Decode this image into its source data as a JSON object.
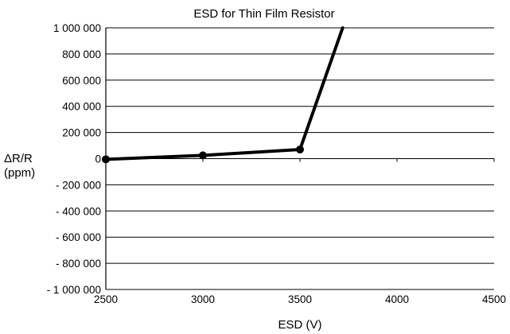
{
  "chart_data": {
    "type": "line",
    "title": "ESD for Thin Film Resistor",
    "xlabel": "ESD (V)",
    "ylabel_line1": "ΔR/R",
    "ylabel_line2": "(ppm)",
    "xlim": [
      2500,
      4500
    ],
    "ylim": [
      -1000000,
      1000000
    ],
    "x_ticks": [
      2500,
      3000,
      3500,
      4000,
      4500
    ],
    "y_ticks": [
      1000000,
      800000,
      600000,
      400000,
      200000,
      0,
      -200000,
      -400000,
      -600000,
      -800000,
      -1000000
    ],
    "x_tick_labels": [
      "2500",
      "3000",
      "3500",
      "4000",
      "4500"
    ],
    "y_tick_labels": [
      "1 000 000",
      "800 000",
      "600 000",
      "400 000",
      "200 000",
      "0",
      "- 200 000",
      "- 400 000",
      "- 600 000",
      "- 800 000",
      "- 1 000 000"
    ],
    "grid": "horizontal",
    "series": [
      {
        "x": [
          2500,
          3000,
          3500,
          3720
        ],
        "y": [
          -5000,
          25000,
          70000,
          1000000
        ],
        "markers": [
          true,
          true,
          true,
          false
        ],
        "color": "#000000"
      }
    ]
  }
}
